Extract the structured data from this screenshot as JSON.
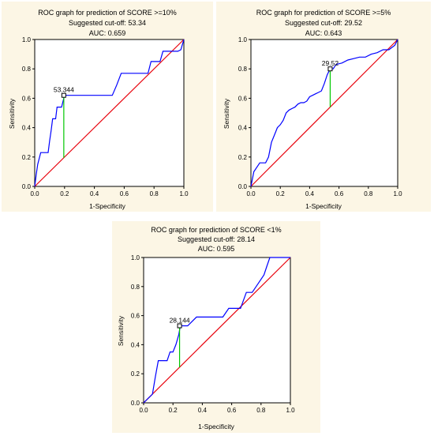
{
  "chart_data": [
    {
      "type": "line",
      "title": "ROC graph for prediction of SCORE >=10%",
      "subtitle_cutoff": "Suggested cut-off: 53.34",
      "subtitle_auc": "AUC: 0.659",
      "xlabel": "1-Specificity",
      "ylabel": "Sensitivity",
      "xlim": [
        0,
        1
      ],
      "ylim": [
        0,
        1
      ],
      "xticks": [
        "0.0",
        "0.2",
        "0.4",
        "0.6",
        "0.8",
        "1.0"
      ],
      "yticks": [
        "0.0",
        "0.2",
        "0.4",
        "0.6",
        "0.8",
        "1.0"
      ],
      "grid": false,
      "colors": {
        "roc": "#0000ff",
        "reference": "#e8000b",
        "cutoff": "#00c800"
      },
      "cutoff_point": {
        "label": "53.344",
        "x": 0.195,
        "y": 0.62
      },
      "roc_curve": {
        "x": [
          0,
          0.01,
          0.02,
          0.04,
          0.06,
          0.08,
          0.09,
          0.1,
          0.11,
          0.12,
          0.14,
          0.15,
          0.18,
          0.2,
          0.22,
          0.27,
          0.52,
          0.55,
          0.58,
          0.6,
          0.62,
          0.76,
          0.78,
          0.8,
          0.83,
          0.84,
          0.86,
          0.88,
          0.9,
          0.92,
          0.94,
          0.96,
          0.98,
          1.0
        ],
        "y": [
          0,
          0.08,
          0.15,
          0.23,
          0.23,
          0.23,
          0.23,
          0.31,
          0.38,
          0.46,
          0.46,
          0.54,
          0.54,
          0.62,
          0.62,
          0.62,
          0.62,
          0.69,
          0.77,
          0.77,
          0.77,
          0.77,
          0.85,
          0.85,
          0.85,
          0.85,
          0.92,
          0.92,
          0.92,
          0.92,
          0.92,
          0.92,
          0.93,
          1.0
        ]
      },
      "reference_line": {
        "x": [
          0,
          1
        ],
        "y": [
          0,
          1
        ]
      }
    },
    {
      "type": "line",
      "title": "ROC graph for prediction of SCORE >=5%",
      "subtitle_cutoff": "Suggested cut-off: 29.52",
      "subtitle_auc": "AUC: 0.643",
      "xlabel": "1-Specificity",
      "ylabel": "Sensitivity",
      "xlim": [
        0,
        1
      ],
      "ylim": [
        0,
        1
      ],
      "xticks": [
        "0.0",
        "0.2",
        "0.4",
        "0.6",
        "0.8",
        "1.0"
      ],
      "yticks": [
        "0.0",
        "0.2",
        "0.4",
        "0.6",
        "0.8",
        "1.0"
      ],
      "grid": false,
      "colors": {
        "roc": "#0000ff",
        "reference": "#e8000b",
        "cutoff": "#00c800"
      },
      "cutoff_point": {
        "label": "29.52",
        "x": 0.54,
        "y": 0.8
      },
      "roc_curve": {
        "x": [
          0,
          0.02,
          0.06,
          0.1,
          0.12,
          0.14,
          0.16,
          0.18,
          0.2,
          0.22,
          0.24,
          0.26,
          0.28,
          0.3,
          0.32,
          0.34,
          0.36,
          0.38,
          0.4,
          0.42,
          0.44,
          0.46,
          0.48,
          0.5,
          0.52,
          0.54,
          0.56,
          0.58,
          0.62,
          0.66,
          0.7,
          0.74,
          0.78,
          0.82,
          0.86,
          0.9,
          0.94,
          0.98,
          1.0
        ],
        "y": [
          0,
          0.1,
          0.16,
          0.16,
          0.2,
          0.3,
          0.35,
          0.4,
          0.42,
          0.45,
          0.5,
          0.52,
          0.53,
          0.54,
          0.56,
          0.57,
          0.57,
          0.58,
          0.61,
          0.62,
          0.63,
          0.64,
          0.65,
          0.7,
          0.76,
          0.8,
          0.8,
          0.83,
          0.84,
          0.86,
          0.87,
          0.88,
          0.88,
          0.9,
          0.91,
          0.93,
          0.93,
          0.96,
          1.0
        ]
      },
      "reference_line": {
        "x": [
          0,
          1
        ],
        "y": [
          0,
          1
        ]
      }
    },
    {
      "type": "line",
      "title": "ROC graph for prediction of SCORE <1%",
      "subtitle_cutoff": "Suggested cut-off: 28.14",
      "subtitle_auc": "AUC: 0.595",
      "xlabel": "1-Specificity",
      "ylabel": "Sensitivity",
      "xlim": [
        0,
        1
      ],
      "ylim": [
        0,
        1
      ],
      "xticks": [
        "0.0",
        "0.2",
        "0.4",
        "0.6",
        "0.8",
        "1.0"
      ],
      "yticks": [
        "0.0",
        "0.2",
        "0.4",
        "0.6",
        "0.8",
        "1.0"
      ],
      "grid": false,
      "colors": {
        "roc": "#0000ff",
        "reference": "#e8000b",
        "cutoff": "#00c800"
      },
      "cutoff_point": {
        "label": "28.144",
        "x": 0.245,
        "y": 0.53
      },
      "roc_curve": {
        "x": [
          0,
          0.06,
          0.08,
          0.1,
          0.12,
          0.16,
          0.18,
          0.2,
          0.22,
          0.24,
          0.25,
          0.3,
          0.36,
          0.42,
          0.54,
          0.58,
          0.62,
          0.66,
          0.7,
          0.74,
          0.78,
          0.82,
          0.84,
          0.86,
          0.88,
          0.9,
          0.94,
          1.0
        ],
        "y": [
          0,
          0.06,
          0.18,
          0.29,
          0.29,
          0.29,
          0.35,
          0.35,
          0.4,
          0.47,
          0.53,
          0.53,
          0.59,
          0.59,
          0.59,
          0.65,
          0.65,
          0.65,
          0.76,
          0.76,
          0.82,
          0.88,
          0.94,
          1.0,
          1.0,
          1.0,
          1.0,
          1.0
        ]
      },
      "reference_line": {
        "x": [
          0,
          1
        ],
        "y": [
          0,
          1
        ]
      }
    }
  ]
}
